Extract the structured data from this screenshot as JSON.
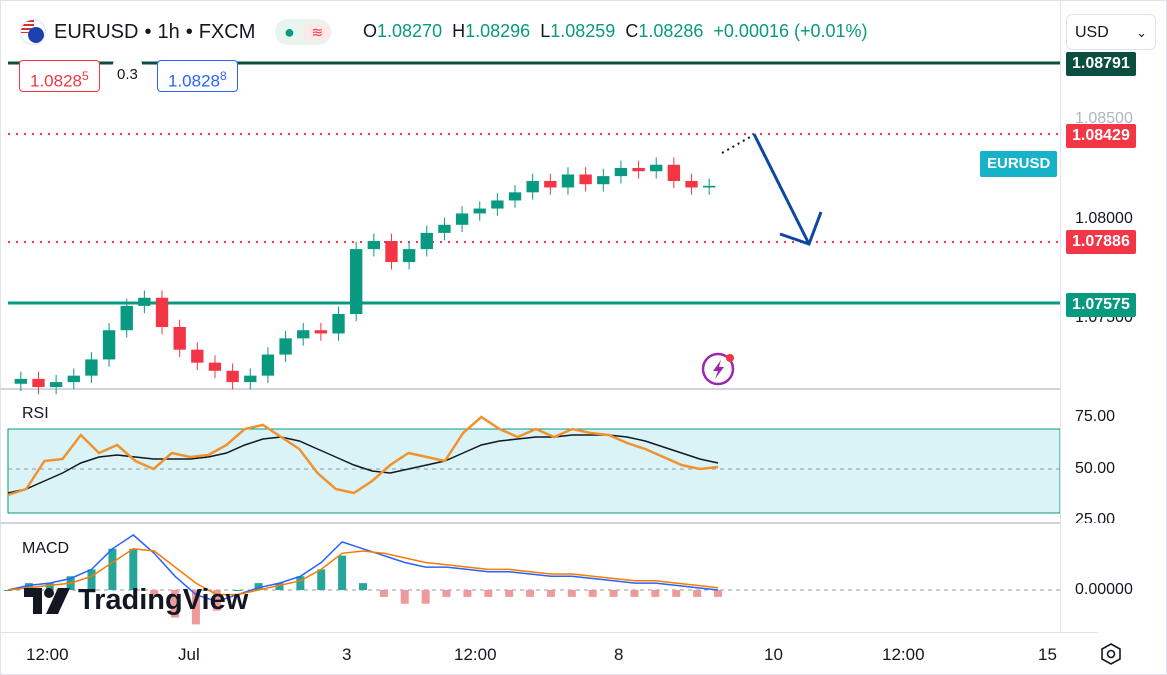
{
  "header": {
    "symbol": "EURUSD",
    "sep1": "•",
    "interval": "1h",
    "sep2": "•",
    "source": "FXCM",
    "ohlc": {
      "o_label": "O",
      "o": "1.08270",
      "h_label": "H",
      "h": "1.08296",
      "l_label": "L",
      "l": "1.08259",
      "c_label": "C",
      "c": "1.08286",
      "change": "+0.00016 (+0.01%)"
    },
    "icons": [
      "flag-eu-us-icon",
      "market-open-dot-icon",
      "wave-icon"
    ]
  },
  "bid": {
    "price": "1.0828",
    "sup": "5"
  },
  "spread": "0.3",
  "ask": {
    "price": "1.0828",
    "sup": "8"
  },
  "currency_select": {
    "value": "USD"
  },
  "price_axis": {
    "ticks": [
      "1.08500",
      "1.08000",
      "1.07500"
    ],
    "levels": [
      {
        "value": "1.08791",
        "color": "#0b4d3f"
      },
      {
        "value": "1.08429",
        "color": "#f23645"
      },
      {
        "value": "1.07886",
        "color": "#f23645"
      },
      {
        "value": "1.07575",
        "color": "#089981"
      }
    ],
    "symbol_tag": "EURUSD"
  },
  "rsi_panel": {
    "label": "RSI",
    "ticks": [
      "75.00",
      "50.00",
      "25.00"
    ]
  },
  "macd_panel": {
    "label": "MACD",
    "ticks": [
      "0.00000"
    ]
  },
  "time_axis": [
    "12:00",
    "Jul",
    "3",
    "12:00",
    "8",
    "10",
    "12:00",
    "15"
  ],
  "logo_text": "TradingView",
  "colors": {
    "up": "#089981",
    "down": "#f23645",
    "rsi": "#f0932e",
    "macd": "#2962ff",
    "signal": "#f57c00",
    "arrow": "#0d47a1"
  },
  "chart_data": [
    {
      "type": "candlestick",
      "title": "EURUSD • 1h • FXCM",
      "y_range": [
        1.0705,
        1.0885
      ],
      "key_levels": [
        1.08791,
        1.08429,
        1.07886,
        1.07575
      ],
      "close_series": [
        1.071,
        1.0705,
        1.0708,
        1.0712,
        1.0722,
        1.074,
        1.0755,
        1.076,
        1.0742,
        1.0728,
        1.072,
        1.0715,
        1.0708,
        1.0712,
        1.0725,
        1.0735,
        1.074,
        1.0738,
        1.075,
        1.079,
        1.0795,
        1.0782,
        1.079,
        1.08,
        1.0805,
        1.0812,
        1.0815,
        1.082,
        1.0825,
        1.0832,
        1.0828,
        1.0836,
        1.083,
        1.0835,
        1.084,
        1.0838,
        1.0842,
        1.0832,
        1.0828,
        1.0829
      ],
      "projection": {
        "from": 1.08429,
        "to": 1.07886,
        "direction": "down"
      }
    },
    {
      "type": "line",
      "title": "RSI",
      "y_range": [
        25,
        85
      ],
      "band": [
        30,
        70
      ],
      "series": [
        {
          "values": [
            37,
            40,
            54,
            55,
            67,
            58,
            62,
            54,
            50,
            58,
            56,
            57,
            62,
            70,
            72,
            66,
            60,
            48,
            40,
            38,
            44,
            52,
            58,
            56,
            54,
            68,
            76,
            70,
            66,
            70,
            66,
            70,
            68,
            67,
            63,
            60,
            56,
            52,
            50,
            51
          ]
        },
        {
          "values": [
            38,
            40,
            44,
            48,
            53,
            56,
            57,
            56,
            55,
            55,
            55,
            56,
            58,
            62,
            65,
            66,
            64,
            60,
            56,
            52,
            49,
            48,
            50,
            52,
            54,
            58,
            62,
            64,
            65,
            66,
            66,
            67,
            67,
            67,
            66,
            64,
            61,
            58,
            55,
            53
          ]
        }
      ]
    },
    {
      "type": "line",
      "title": "MACD",
      "series": [
        {
          "values": [
            0.0,
            0.0002,
            0.0003,
            0.0005,
            0.0009,
            0.0018,
            0.0024,
            0.0016,
            0.0006,
            -0.0002,
            -0.0005,
            -0.0002,
            0.0001,
            0.0003,
            0.0006,
            0.0012,
            0.0021,
            0.0018,
            0.0015,
            0.0012,
            0.001,
            0.001,
            0.0009,
            0.0008,
            0.0008,
            0.0007,
            0.0006,
            0.0006,
            0.0005,
            0.0004,
            0.0003,
            0.0003,
            0.0002,
            0.0001,
            0.0
          ]
        },
        {
          "values": [
            0.0,
            0.0001,
            0.0002,
            0.0003,
            0.0006,
            0.0012,
            0.0018,
            0.0017,
            0.001,
            0.0003,
            -0.0002,
            -0.0002,
            0.0,
            0.0002,
            0.0004,
            0.0009,
            0.0016,
            0.0017,
            0.0016,
            0.0014,
            0.0012,
            0.0011,
            0.001,
            0.0009,
            0.0009,
            0.0008,
            0.0007,
            0.0007,
            0.0006,
            0.0005,
            0.0004,
            0.0004,
            0.0003,
            0.0002,
            0.0001
          ]
        }
      ]
    }
  ]
}
